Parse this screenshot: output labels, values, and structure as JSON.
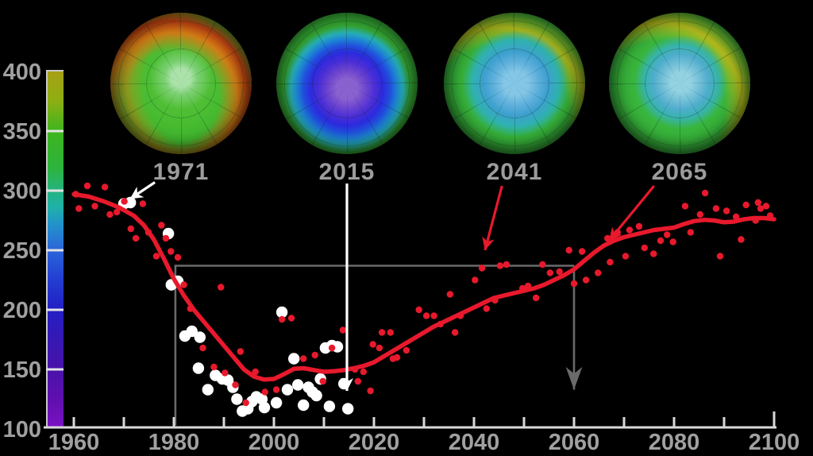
{
  "background_color": "#000000",
  "globes": [
    {
      "label": "1971",
      "center_color": "#8cd79a",
      "ring_color": "#d2551a",
      "edge_color": "#3eb430"
    },
    {
      "label": "2015",
      "hole_color": "#5b38d6",
      "hole_core_color": "#7b52c9",
      "edge_color": "#3ab636"
    },
    {
      "label": "2041",
      "hole_color": "#55abd8",
      "accent_color": "#c4ba18",
      "edge_color": "#37b43a"
    },
    {
      "label": "2065",
      "hole_color": "#6fbcd8",
      "accent_color": "#c8c01a",
      "edge_color": "#38b53b"
    }
  ],
  "chart_data": {
    "type": "scatter",
    "title": "",
    "xlabel": "",
    "ylabel": "",
    "x_axis": {
      "min": 1960,
      "max": 2100,
      "tick_years": [
        1960,
        1970,
        1980,
        1990,
        2000,
        2010,
        2020,
        2030,
        2040,
        2050,
        2060,
        2070,
        2080,
        2090,
        2100
      ],
      "label_years": [
        1960,
        1980,
        2000,
        2020,
        2040,
        2060,
        2080,
        2100
      ],
      "color": "#d9d9d9",
      "label_color": "#a0a0a0"
    },
    "y_axis": {
      "min": 100,
      "max": 400,
      "tick_values": [
        400,
        350,
        300,
        250,
        200,
        150,
        100
      ],
      "colorbar_tick_values": [
        350,
        300,
        250,
        200,
        150
      ],
      "label_color": "#a0a0a0"
    },
    "colors": {
      "red": "#e8192c",
      "white": "#ffffff",
      "gray_reference": "#6a6a6a"
    },
    "series": [
      {
        "name": "observations",
        "style": "white-dot",
        "points": [
          [
            1970.0,
            289
          ],
          [
            1971.3,
            290
          ],
          [
            1978.9,
            264
          ],
          [
            1979.5,
            221
          ],
          [
            1980.8,
            224
          ],
          [
            1982.2,
            178
          ],
          [
            1983.6,
            182
          ],
          [
            1985.2,
            177
          ],
          [
            1984.9,
            151
          ],
          [
            1986.8,
            133
          ],
          [
            1988.3,
            145
          ],
          [
            1989.7,
            142
          ],
          [
            1990.8,
            141
          ],
          [
            1991.8,
            135
          ],
          [
            1992.6,
            125
          ],
          [
            1993.7,
            115
          ],
          [
            1994.8,
            117
          ],
          [
            1995.6,
            123
          ],
          [
            1996.5,
            127
          ],
          [
            1997.6,
            125
          ],
          [
            1998.1,
            118
          ],
          [
            2000.5,
            122
          ],
          [
            2001.6,
            198
          ],
          [
            2002.7,
            133
          ],
          [
            2004.0,
            159
          ],
          [
            2004.8,
            137
          ],
          [
            2005.9,
            120
          ],
          [
            2006.9,
            135
          ],
          [
            2007.7,
            131
          ],
          [
            2008.5,
            128
          ],
          [
            2009.3,
            142
          ],
          [
            2010.3,
            168
          ],
          [
            2011.1,
            119
          ],
          [
            2011.6,
            170
          ],
          [
            2012.7,
            169
          ],
          [
            2014.0,
            138
          ],
          [
            2014.8,
            117
          ]
        ]
      },
      {
        "name": "model-annual",
        "style": "red-dot",
        "points": [
          [
            1960.4,
            297
          ],
          [
            1961.0,
            285
          ],
          [
            1962.7,
            304
          ],
          [
            1964.2,
            287
          ],
          [
            1966.2,
            303
          ],
          [
            1967.2,
            280
          ],
          [
            1968.6,
            282
          ],
          [
            1970.1,
            291
          ],
          [
            1971.4,
            268
          ],
          [
            1972.4,
            260
          ],
          [
            1973.8,
            289
          ],
          [
            1974.9,
            265
          ],
          [
            1976.5,
            245
          ],
          [
            1977.5,
            271
          ],
          [
            1978.4,
            260
          ],
          [
            1979.4,
            249
          ],
          [
            1980.8,
            244
          ],
          [
            1982.0,
            221
          ],
          [
            1983.3,
            201
          ],
          [
            1985.8,
            168
          ],
          [
            1988.0,
            152
          ],
          [
            1989.4,
            219
          ],
          [
            1990.2,
            147
          ],
          [
            1992.3,
            137
          ],
          [
            1993.3,
            165
          ],
          [
            1994.4,
            122
          ],
          [
            1996.3,
            148
          ],
          [
            1998.2,
            131
          ],
          [
            2000.5,
            133
          ],
          [
            2001.6,
            192
          ],
          [
            2003.5,
            193
          ],
          [
            2005.9,
            159
          ],
          [
            2008.2,
            162
          ],
          [
            2009.8,
            140
          ],
          [
            2011.6,
            168
          ],
          [
            2013.8,
            183
          ],
          [
            2016.2,
            150
          ],
          [
            2016.8,
            140
          ],
          [
            2017.9,
            148
          ],
          [
            2019.3,
            132
          ],
          [
            2019.8,
            171
          ],
          [
            2021.1,
            168
          ],
          [
            2021.6,
            181
          ],
          [
            2023.3,
            181
          ],
          [
            2023.8,
            159
          ],
          [
            2024.6,
            160
          ],
          [
            2026.5,
            166
          ],
          [
            2029.0,
            200
          ],
          [
            2030.5,
            195
          ],
          [
            2032.0,
            195
          ],
          [
            2033.3,
            188
          ],
          [
            2035.2,
            213
          ],
          [
            2036.2,
            181
          ],
          [
            2037.3,
            195
          ],
          [
            2040.2,
            225
          ],
          [
            2041.6,
            235
          ],
          [
            2042.5,
            201
          ],
          [
            2044.2,
            208
          ],
          [
            2045.2,
            237
          ],
          [
            2046.5,
            238
          ],
          [
            2049.7,
            218
          ],
          [
            2050.8,
            220
          ],
          [
            2052.4,
            210
          ],
          [
            2053.7,
            238
          ],
          [
            2055.2,
            231
          ],
          [
            2057.1,
            232
          ],
          [
            2059.0,
            250
          ],
          [
            2060.0,
            222
          ],
          [
            2061.6,
            249
          ],
          [
            2062.4,
            225
          ],
          [
            2064.8,
            231
          ],
          [
            2066.7,
            260
          ],
          [
            2067.2,
            240
          ],
          [
            2068.7,
            265
          ],
          [
            2070.3,
            245
          ],
          [
            2071.1,
            267
          ],
          [
            2073.0,
            270
          ],
          [
            2074.1,
            252
          ],
          [
            2075.9,
            247
          ],
          [
            2077.3,
            258
          ],
          [
            2078.6,
            263
          ],
          [
            2079.8,
            257
          ],
          [
            2082.2,
            287
          ],
          [
            2083.3,
            265
          ],
          [
            2085.2,
            280
          ],
          [
            2086.2,
            298
          ],
          [
            2088.4,
            285
          ],
          [
            2089.2,
            245
          ],
          [
            2090.5,
            283
          ],
          [
            2092.4,
            278
          ],
          [
            2093.4,
            259
          ],
          [
            2094.4,
            288
          ],
          [
            2096.3,
            275
          ],
          [
            2096.8,
            290
          ],
          [
            2097.3,
            285
          ],
          [
            2098.4,
            287
          ],
          [
            2099.2,
            279
          ]
        ]
      },
      {
        "name": "model-smoothed",
        "style": "red-line",
        "points": [
          [
            1960,
            297
          ],
          [
            1963,
            295
          ],
          [
            1966,
            291
          ],
          [
            1969,
            286
          ],
          [
            1972,
            279
          ],
          [
            1974,
            271
          ],
          [
            1976,
            259
          ],
          [
            1978,
            243
          ],
          [
            1980,
            226
          ],
          [
            1982,
            212
          ],
          [
            1984,
            200
          ],
          [
            1986,
            190
          ],
          [
            1988,
            180
          ],
          [
            1990,
            170
          ],
          [
            1992,
            160
          ],
          [
            1994,
            150
          ],
          [
            1996,
            144
          ],
          [
            1998,
            141.5
          ],
          [
            2000,
            142
          ],
          [
            2002,
            146
          ],
          [
            2004,
            150.5
          ],
          [
            2006,
            151
          ],
          [
            2008,
            149.5
          ],
          [
            2010,
            148
          ],
          [
            2012,
            148.5
          ],
          [
            2014,
            149.5
          ],
          [
            2016,
            151
          ],
          [
            2018,
            153
          ],
          [
            2020,
            156
          ],
          [
            2022,
            161
          ],
          [
            2024,
            166
          ],
          [
            2026,
            171
          ],
          [
            2028,
            176
          ],
          [
            2030,
            181
          ],
          [
            2032,
            186
          ],
          [
            2034,
            190
          ],
          [
            2036,
            194
          ],
          [
            2038,
            198
          ],
          [
            2040,
            202
          ],
          [
            2042,
            206
          ],
          [
            2044,
            210
          ],
          [
            2046,
            212
          ],
          [
            2048,
            214
          ],
          [
            2050,
            216
          ],
          [
            2052,
            218
          ],
          [
            2054,
            221
          ],
          [
            2056,
            225
          ],
          [
            2058,
            229
          ],
          [
            2060,
            234
          ],
          [
            2062,
            241
          ],
          [
            2064,
            248
          ],
          [
            2066,
            254
          ],
          [
            2068,
            258
          ],
          [
            2070,
            261
          ],
          [
            2072,
            263
          ],
          [
            2074,
            265
          ],
          [
            2076,
            267
          ],
          [
            2078,
            268
          ],
          [
            2080,
            269
          ],
          [
            2082,
            272
          ],
          [
            2084,
            274.5
          ],
          [
            2086,
            275.5
          ],
          [
            2088,
            275
          ],
          [
            2090,
            273.5
          ],
          [
            2092,
            274
          ],
          [
            2094,
            276
          ],
          [
            2096,
            277
          ],
          [
            2098,
            277
          ],
          [
            2100,
            276
          ]
        ]
      }
    ],
    "reference_1980_level": {
      "value": 237,
      "h_from_year": 1980.3,
      "h_to_year": 2060,
      "v_1980_bottom": 103,
      "v_2060_line_end": 133,
      "color": "#6a6a6a"
    },
    "annotations": {
      "arrows": [
        {
          "name": "arrow-to-1971-observations",
          "marker": "white",
          "from": [
            1976.2,
            307
          ],
          "to": [
            1971.2,
            293
          ]
        },
        {
          "name": "arrow-to-2015-observation",
          "marker": "white",
          "from": [
            2014.6,
            306
          ],
          "to": [
            2014.6,
            132
          ]
        },
        {
          "name": "arrow-to-2041-model",
          "marker": "red",
          "from": [
            2045.6,
            304
          ],
          "to": [
            2042.2,
            250
          ]
        },
        {
          "name": "arrow-to-2065-model",
          "marker": "red",
          "from": [
            2076.0,
            304
          ],
          "to": [
            2067.0,
            258
          ]
        }
      ]
    }
  },
  "colorbar": {
    "tick_labels": [
      "400",
      "350",
      "300",
      "250",
      "200",
      "150",
      "100"
    ],
    "gradient": [
      {
        "value": 100,
        "color": "#7a12c4"
      },
      {
        "value": 150,
        "color": "#4813aa"
      },
      {
        "value": 200,
        "color": "#221fc4"
      },
      {
        "value": 250,
        "color": "#2b66d9"
      },
      {
        "value": 300,
        "color": "#25b37e"
      },
      {
        "value": 350,
        "color": "#3fb51e"
      },
      {
        "value": 400,
        "color": "#a7a014"
      }
    ]
  }
}
